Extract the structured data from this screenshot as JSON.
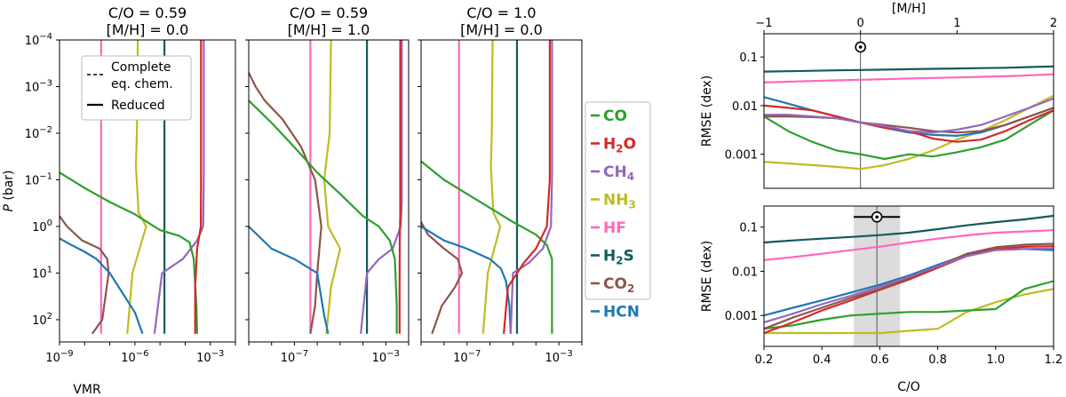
{
  "colors": {
    "CO": "#2ca02c",
    "H2O": "#d62728",
    "CH4": "#9467bd",
    "NH3": "#bcbd22",
    "HF": "#ff66bb",
    "H2S": "#145a5a",
    "CO2": "#8c564b",
    "HCN": "#1f77b4"
  },
  "species_legend": [
    {
      "key": "CO",
      "base": "CO",
      "sub": ""
    },
    {
      "key": "H2O",
      "base": "H",
      "sub": "2",
      "tail": "O"
    },
    {
      "key": "CH4",
      "base": "CH",
      "sub": "4",
      "tail": ""
    },
    {
      "key": "NH3",
      "base": "NH",
      "sub": "3",
      "tail": ""
    },
    {
      "key": "HF",
      "base": "HF",
      "sub": ""
    },
    {
      "key": "H2S",
      "base": "H",
      "sub": "2",
      "tail": "S"
    },
    {
      "key": "CO2",
      "base": "CO",
      "sub": "2",
      "tail": ""
    },
    {
      "key": "HCN",
      "base": "HCN",
      "sub": ""
    }
  ],
  "chart_data": [
    {
      "type": "line",
      "panel": "profile-1",
      "title": [
        "C/O = 0.59",
        "[M/H] = 0.0"
      ],
      "xlabel": "VMR",
      "ylabel": "P (bar)",
      "xscale": "log",
      "yscale": "log",
      "y_inverted": true,
      "xlim": [
        1e-09,
        0.01
      ],
      "ylim": [
        0.0001,
        300
      ],
      "x_ticks": [
        "10^-9",
        "10^-6",
        "10^-3"
      ],
      "y_ticks": [
        "10^-4",
        "10^-3",
        "10^-2",
        "10^-1",
        "10^0",
        "10^1",
        "10^2"
      ],
      "legend": {
        "position": "top-left",
        "entries": [
          {
            "style": "dashed",
            "label": "Complete eq. chem."
          },
          {
            "style": "solid",
            "label": "Reduced"
          }
        ]
      },
      "series": [
        {
          "name": "CO",
          "x": [
            1e-09,
            1e-08,
            1e-07,
            1e-06,
            1e-05,
            6e-05,
            0.00015,
            0.00022,
            0.00028,
            0.0003
          ],
          "y": [
            0.07,
            0.15,
            0.3,
            0.55,
            1.2,
            1.6,
            2.2,
            5,
            50,
            200
          ]
        },
        {
          "name": "H2O",
          "x": [
            0.00043,
            0.00043,
            0.00042,
            0.0003,
            0.00025,
            0.00025
          ],
          "y": [
            0.0001,
            0.1,
            1,
            3,
            20,
            200
          ]
        },
        {
          "name": "CH4",
          "x": [
            0.00055,
            0.00055,
            0.00052,
            0.0003,
            8e-05,
            1.2e-05,
            6e-06
          ],
          "y": [
            0.0001,
            0.1,
            1,
            2,
            5,
            10,
            200
          ]
        },
        {
          "name": "NH3",
          "x": [
            1.3e-06,
            1.2e-06,
            1.1e-06,
            1.4e-06,
            2.8e-06,
            8e-07,
            5e-07
          ],
          "y": [
            0.0001,
            0.01,
            0.05,
            0.5,
            1,
            10,
            200
          ]
        },
        {
          "name": "HF",
          "x": [
            4.5e-08,
            4.5e-08
          ],
          "y": [
            0.0001,
            200
          ]
        },
        {
          "name": "H2S",
          "x": [
            1.5e-05,
            1.5e-05
          ],
          "y": [
            0.0001,
            200
          ]
        },
        {
          "name": "CO2",
          "x": [
            1e-09,
            2e-09,
            8e-09,
            4e-08,
            8e-08,
            9e-08,
            5e-08,
            2e-08
          ],
          "y": [
            0.6,
            1,
            2,
            3,
            5,
            10,
            100,
            200
          ]
        },
        {
          "name": "HCN",
          "x": [
            1e-09,
            3e-09,
            1e-08,
            3e-08,
            1e-07,
            1e-06,
            2e-06
          ],
          "y": [
            1.8,
            2.5,
            3.5,
            5,
            10,
            70,
            200
          ]
        }
      ]
    },
    {
      "type": "line",
      "panel": "profile-2",
      "title": [
        "C/O = 0.59",
        "[M/H] = 1.0"
      ],
      "xscale": "log",
      "yscale": "log",
      "y_inverted": true,
      "xlim": [
        1e-09,
        0.01
      ],
      "ylim": [
        0.0001,
        300
      ],
      "x_ticks": [
        "10^-7",
        "10^-3"
      ],
      "series": [
        {
          "name": "CO",
          "x": [
            1e-09,
            1e-08,
            1e-07,
            1e-06,
            1e-05,
            0.0001,
            0.0005,
            0.0015,
            0.0025,
            0.003,
            0.003
          ],
          "y": [
            0.002,
            0.006,
            0.02,
            0.07,
            0.2,
            0.6,
            1,
            2,
            5,
            50,
            200
          ]
        },
        {
          "name": "H2O",
          "x": [
            0.0043,
            0.0043,
            0.0041,
            0.004,
            0.004
          ],
          "y": [
            0.0001,
            0.5,
            2,
            20,
            200
          ]
        },
        {
          "name": "CH4",
          "x": [
            0.005,
            0.005,
            0.0045,
            0.002,
            0.0005,
            0.00015,
            8e-05
          ],
          "y": [
            0.0001,
            0.3,
            1,
            3,
            5,
            10,
            200
          ]
        },
        {
          "name": "NH3",
          "x": [
            4e-06,
            3.5e-06,
            2e-06,
            3e-06,
            1e-05,
            4e-06,
            2.5e-06
          ],
          "y": [
            0.0001,
            0.01,
            0.1,
            1,
            3,
            20,
            200
          ]
        },
        {
          "name": "HF",
          "x": [
            5e-07,
            5e-07
          ],
          "y": [
            0.0001,
            200
          ]
        },
        {
          "name": "H2S",
          "x": [
            0.00015,
            0.00015
          ],
          "y": [
            0.0001,
            200
          ]
        },
        {
          "name": "CO2",
          "x": [
            1e-09,
            2e-09,
            5e-09,
            3e-08,
            2e-07,
            8e-07,
            1.5e-06,
            1e-06,
            8e-07,
            5e-07
          ],
          "y": [
            0.0005,
            0.001,
            0.002,
            0.005,
            0.02,
            0.1,
            1,
            10,
            50,
            200
          ]
        },
        {
          "name": "HCN",
          "x": [
            1e-09,
            1e-08,
            1e-07,
            1e-06,
            2e-06,
            3e-06
          ],
          "y": [
            1,
            3,
            5,
            10,
            80,
            200
          ]
        }
      ]
    },
    {
      "type": "line",
      "panel": "profile-3",
      "title": [
        "C/O = 1.0",
        "[M/H] = 0.0"
      ],
      "xscale": "log",
      "yscale": "log",
      "y_inverted": true,
      "xlim": [
        1e-09,
        0.01
      ],
      "ylim": [
        0.0001,
        300
      ],
      "x_ticks": [
        "10^-7",
        "10^-3"
      ],
      "series": [
        {
          "name": "CO",
          "x": [
            1e-09,
            1e-08,
            1e-07,
            1e-06,
            1e-05,
            0.0001,
            0.0003,
            0.0005,
            0.0005
          ],
          "y": [
            0.04,
            0.1,
            0.2,
            0.4,
            0.8,
            1.5,
            2.5,
            5,
            200
          ]
        },
        {
          "name": "H2O",
          "x": [
            0.0004,
            0.0004,
            0.0003,
            0.0001,
            3e-05,
            6e-06,
            4e-06
          ],
          "y": [
            0.0001,
            0.1,
            1,
            3,
            6,
            20,
            200
          ]
        },
        {
          "name": "CH4",
          "x": [
            0.0005,
            0.0005,
            0.00045,
            0.0002,
            5e-05,
            1e-05,
            8e-06
          ],
          "y": [
            0.0001,
            0.1,
            1,
            3,
            6,
            10,
            200
          ]
        },
        {
          "name": "NH3",
          "x": [
            1.3e-06,
            1.2e-06,
            1.1e-06,
            1.4e-06,
            2.8e-06,
            8e-07,
            5e-07
          ],
          "y": [
            0.0001,
            0.01,
            0.05,
            0.5,
            1,
            10,
            200
          ]
        },
        {
          "name": "HF",
          "x": [
            4.5e-08,
            4.5e-08
          ],
          "y": [
            0.0001,
            200
          ]
        },
        {
          "name": "H2S",
          "x": [
            1.5e-05,
            1.5e-05
          ],
          "y": [
            0.0001,
            200
          ]
        },
        {
          "name": "CO2",
          "x": [
            1e-09,
            2e-09,
            1e-08,
            4e-08,
            6e-08,
            3e-08,
            8e-09,
            3e-09
          ],
          "y": [
            0.8,
            1.5,
            3,
            5,
            10,
            20,
            50,
            200
          ]
        },
        {
          "name": "HCN",
          "x": [
            1e-09,
            1e-08,
            1e-07,
            1e-06,
            3e-06,
            5e-06,
            7e-06,
            8e-06
          ],
          "y": [
            1,
            2,
            3,
            5,
            8,
            15,
            50,
            200
          ]
        }
      ]
    },
    {
      "type": "line",
      "panel": "rmse-mh",
      "xlabel": "[M/H]",
      "ylabel": "RMSE (dex)",
      "yscale": "log",
      "xlim": [
        -1,
        2
      ],
      "ylim": [
        0.0002,
        0.3
      ],
      "x_ticks": [
        "−1",
        "0",
        "1",
        "2"
      ],
      "y_ticks": [
        "0.001",
        "0.01",
        "0.1"
      ],
      "marker": {
        "x": 0,
        "y": 0.16,
        "label": "solar"
      },
      "vline": 0,
      "x": [
        -1,
        -0.75,
        -0.5,
        -0.25,
        0,
        0.25,
        0.5,
        0.75,
        1,
        1.25,
        1.5,
        1.75,
        2
      ],
      "series": [
        {
          "name": "H2S",
          "values": [
            0.05,
            0.051,
            0.052,
            0.053,
            0.054,
            0.055,
            0.056,
            0.057,
            0.058,
            0.059,
            0.06,
            0.062,
            0.064
          ]
        },
        {
          "name": "HF",
          "values": [
            0.03,
            0.031,
            0.032,
            0.033,
            0.034,
            0.035,
            0.036,
            0.037,
            0.038,
            0.039,
            0.04,
            0.042,
            0.044
          ]
        },
        {
          "name": "HCN",
          "values": [
            0.015,
            0.011,
            0.008,
            0.006,
            0.0045,
            0.0035,
            0.0028,
            0.0025,
            0.0024,
            0.0028,
            0.004,
            0.006,
            0.009
          ]
        },
        {
          "name": "H2O",
          "values": [
            0.01,
            0.009,
            0.008,
            0.006,
            0.0045,
            0.0035,
            0.003,
            0.0021,
            0.0018,
            0.002,
            0.003,
            0.005,
            0.008
          ]
        },
        {
          "name": "CO2",
          "values": [
            0.006,
            0.006,
            0.0058,
            0.0055,
            0.0045,
            0.004,
            0.0035,
            0.003,
            0.0028,
            0.003,
            0.004,
            0.006,
            0.009
          ]
        },
        {
          "name": "CH4",
          "values": [
            0.0065,
            0.0065,
            0.006,
            0.0055,
            0.0045,
            0.0038,
            0.003,
            0.0028,
            0.0032,
            0.004,
            0.006,
            0.009,
            0.014
          ]
        },
        {
          "name": "CO",
          "values": [
            0.006,
            0.003,
            0.0018,
            0.0012,
            0.001,
            0.0008,
            0.001,
            0.0009,
            0.0011,
            0.0014,
            0.002,
            0.004,
            0.008
          ]
        },
        {
          "name": "NH3",
          "values": [
            0.0007,
            0.00065,
            0.0006,
            0.00055,
            0.0005,
            0.0006,
            0.0008,
            0.0012,
            0.002,
            0.003,
            0.005,
            0.009,
            0.016
          ]
        }
      ]
    },
    {
      "type": "line",
      "panel": "rmse-co",
      "xlabel": "C/O",
      "ylabel": "RMSE (dex)",
      "yscale": "log",
      "xlim": [
        0.2,
        1.2
      ],
      "ylim": [
        0.0002,
        0.3
      ],
      "x_ticks": [
        "0.2",
        "0.4",
        "0.6",
        "0.8",
        "1.0",
        "1.2"
      ],
      "y_ticks": [
        "0.001",
        "0.01",
        "0.1"
      ],
      "marker": {
        "x": 0.59,
        "y": 0.17,
        "xerr_low": 0.51,
        "xerr_high": 0.67,
        "label": "solar"
      },
      "shaded_band": [
        0.51,
        0.67
      ],
      "vline": 0.59,
      "x": [
        0.2,
        0.3,
        0.4,
        0.5,
        0.6,
        0.7,
        0.8,
        0.9,
        1.0,
        1.1,
        1.2
      ],
      "series": [
        {
          "name": "H2S",
          "values": [
            0.045,
            0.05,
            0.055,
            0.06,
            0.066,
            0.075,
            0.09,
            0.11,
            0.13,
            0.15,
            0.18
          ]
        },
        {
          "name": "HF",
          "values": [
            0.018,
            0.021,
            0.025,
            0.03,
            0.036,
            0.045,
            0.055,
            0.065,
            0.075,
            0.08,
            0.085
          ]
        },
        {
          "name": "CO2",
          "values": [
            0.0005,
            0.0009,
            0.0015,
            0.0025,
            0.004,
            0.007,
            0.013,
            0.025,
            0.035,
            0.04,
            0.042
          ]
        },
        {
          "name": "H2O",
          "values": [
            0.0004,
            0.0007,
            0.0013,
            0.0022,
            0.0038,
            0.0065,
            0.012,
            0.022,
            0.032,
            0.036,
            0.037
          ]
        },
        {
          "name": "CH4",
          "values": [
            0.0007,
            0.0011,
            0.0018,
            0.0028,
            0.0045,
            0.0075,
            0.013,
            0.022,
            0.03,
            0.032,
            0.033
          ]
        },
        {
          "name": "HCN",
          "values": [
            0.001,
            0.0015,
            0.0022,
            0.0033,
            0.005,
            0.008,
            0.014,
            0.024,
            0.032,
            0.032,
            0.03
          ]
        },
        {
          "name": "CO",
          "values": [
            0.0005,
            0.0006,
            0.0008,
            0.001,
            0.0011,
            0.0012,
            0.0012,
            0.0013,
            0.0014,
            0.004,
            0.006
          ]
        },
        {
          "name": "NH3",
          "values": [
            0.0004,
            0.0004,
            0.0004,
            0.0004,
            0.0004,
            0.00045,
            0.0005,
            0.0012,
            0.002,
            0.003,
            0.004
          ]
        }
      ]
    }
  ]
}
